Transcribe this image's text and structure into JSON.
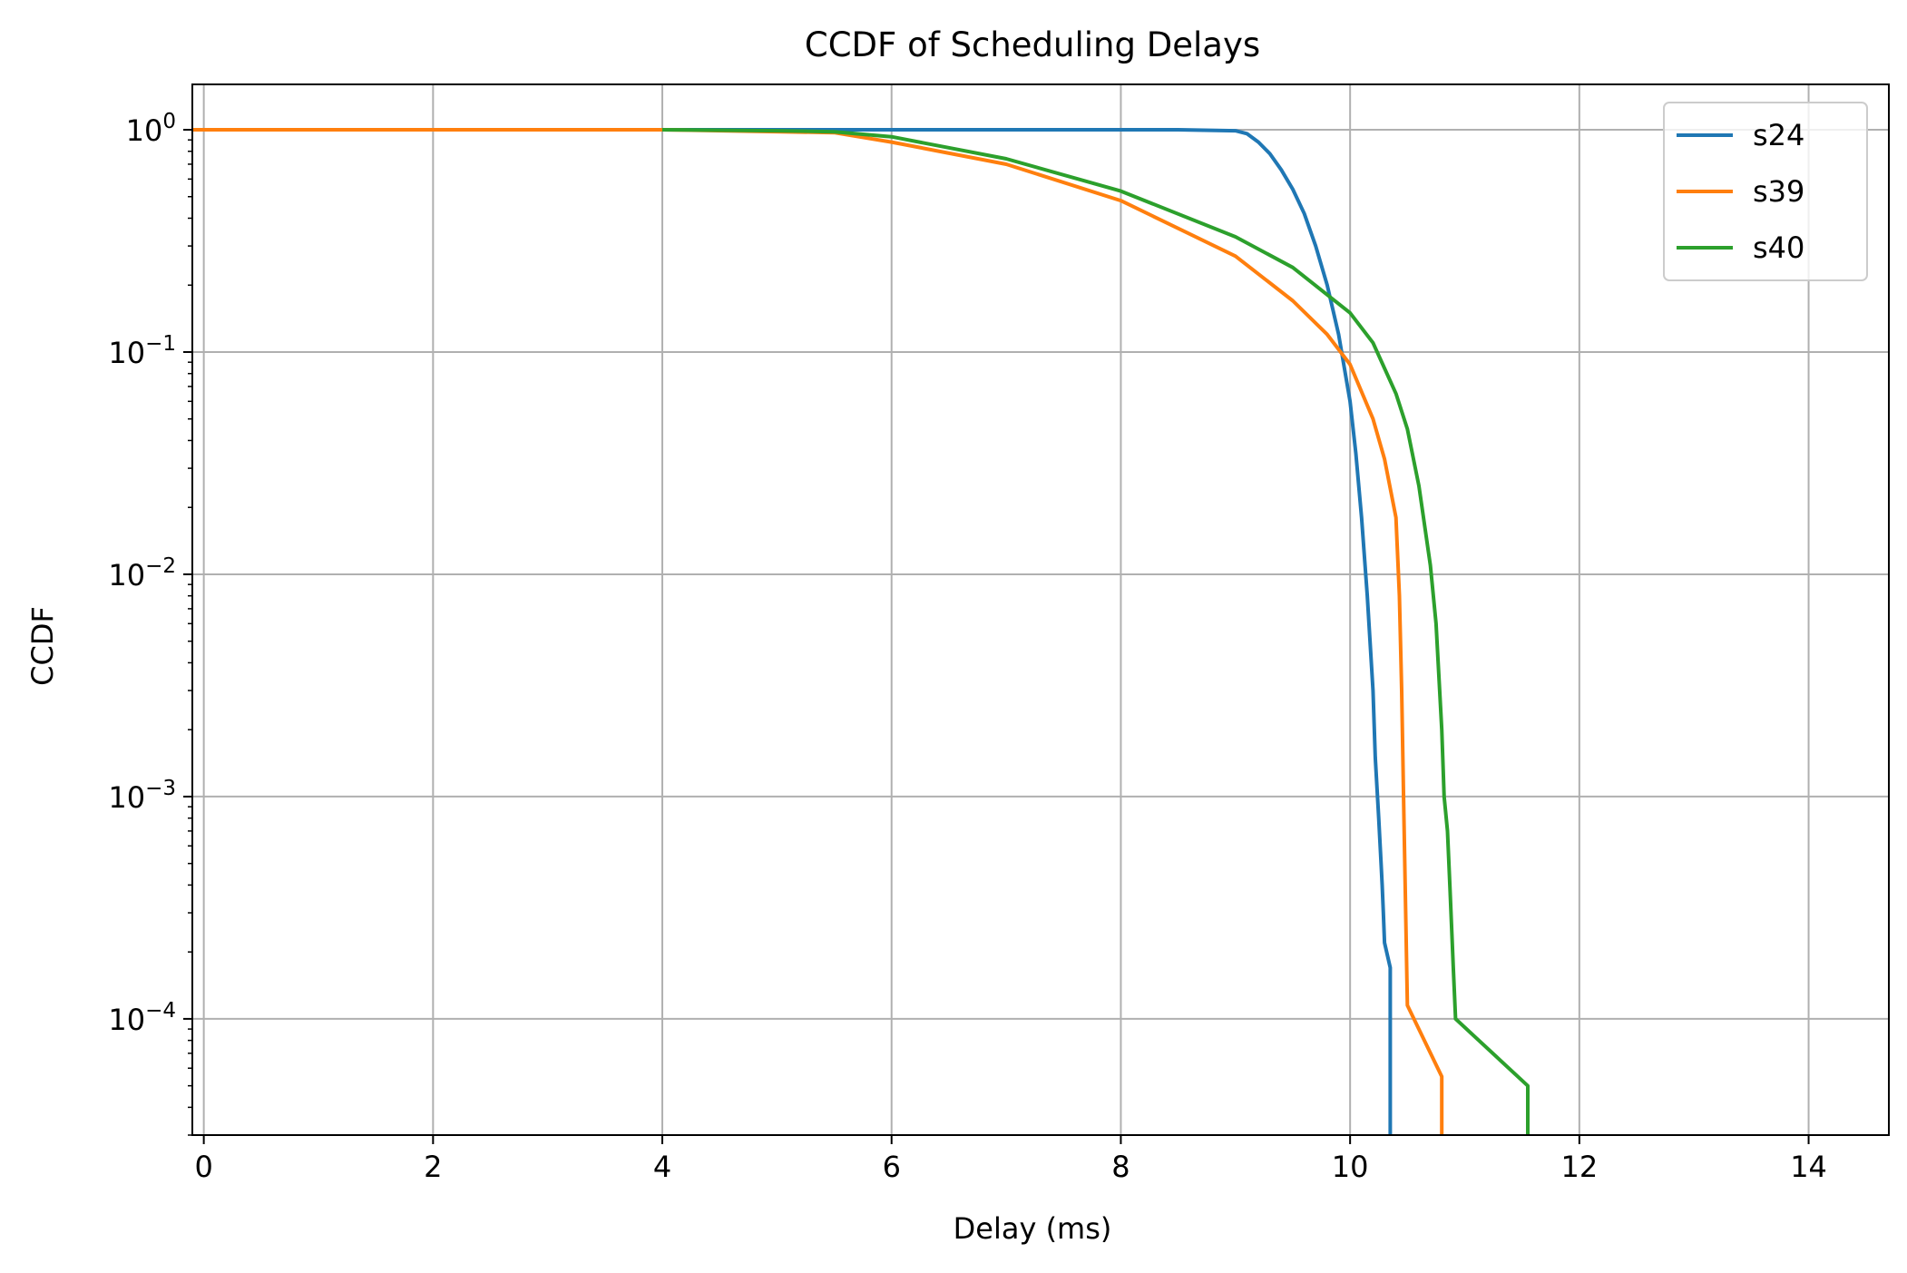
{
  "chart_data": {
    "type": "line",
    "title": "CCDF of Scheduling Delays",
    "xlabel": "Delay (ms)",
    "ylabel": "CCDF",
    "xlim": [
      -0.1,
      14.7
    ],
    "ylim": [
      3e-05,
      1.6
    ],
    "yscale": "log",
    "x_ticks": [
      0,
      2,
      4,
      6,
      8,
      10,
      12,
      14
    ],
    "x_tick_labels": [
      "0",
      "2",
      "4",
      "6",
      "8",
      "10",
      "12",
      "14"
    ],
    "y_ticks": [
      {
        "value": 1,
        "base": "10",
        "exp": "0"
      },
      {
        "value": 0.1,
        "base": "10",
        "exp": "−1"
      },
      {
        "value": 0.01,
        "base": "10",
        "exp": "−2"
      },
      {
        "value": 0.001,
        "base": "10",
        "exp": "−3"
      },
      {
        "value": 0.0001,
        "base": "10",
        "exp": "−4"
      }
    ],
    "grid": true,
    "legend_position": "top-right",
    "series": [
      {
        "name": "s24",
        "color": "#1f77b4",
        "x": [
          4.0,
          5.0,
          6.0,
          7.0,
          8.0,
          8.5,
          9.0,
          9.1,
          9.2,
          9.3,
          9.4,
          9.5,
          9.6,
          9.7,
          9.8,
          9.9,
          10.0,
          10.05,
          10.1,
          10.15,
          10.2,
          10.22,
          10.25,
          10.27,
          10.28,
          10.29,
          10.3,
          10.35,
          10.35
        ],
        "y": [
          1.0,
          1.0,
          1.0,
          1.0,
          1.0,
          1.0,
          0.99,
          0.96,
          0.88,
          0.78,
          0.66,
          0.54,
          0.42,
          0.3,
          0.2,
          0.12,
          0.06,
          0.035,
          0.018,
          0.008,
          0.003,
          0.0015,
          0.0008,
          0.0005,
          0.0004,
          0.0003,
          0.00022,
          0.00017,
          3e-05
        ]
      },
      {
        "name": "s39",
        "color": "#ff7f0e",
        "x": [
          -0.1,
          2.0,
          4.0,
          5.5,
          6.0,
          7.0,
          8.0,
          9.0,
          9.5,
          9.8,
          10.0,
          10.2,
          10.3,
          10.4,
          10.43,
          10.45,
          10.47,
          10.5,
          10.8,
          10.8
        ],
        "y": [
          1.0,
          1.0,
          1.0,
          0.97,
          0.88,
          0.7,
          0.48,
          0.27,
          0.17,
          0.12,
          0.088,
          0.05,
          0.033,
          0.018,
          0.008,
          0.003,
          0.0008,
          0.000115,
          5.5e-05,
          3e-05
        ]
      },
      {
        "name": "s40",
        "color": "#2ca02c",
        "x": [
          4.0,
          5.0,
          5.5,
          6.0,
          7.0,
          8.0,
          9.0,
          9.5,
          10.0,
          10.2,
          10.4,
          10.5,
          10.6,
          10.7,
          10.75,
          10.8,
          10.82,
          10.85,
          10.87,
          10.9,
          10.92,
          11.55,
          11.55
        ],
        "y": [
          1.0,
          0.99,
          0.98,
          0.93,
          0.74,
          0.53,
          0.33,
          0.24,
          0.15,
          0.11,
          0.065,
          0.045,
          0.025,
          0.011,
          0.006,
          0.002,
          0.001,
          0.0007,
          0.0004,
          0.00017,
          0.0001,
          5e-05,
          3e-05
        ]
      }
    ]
  }
}
